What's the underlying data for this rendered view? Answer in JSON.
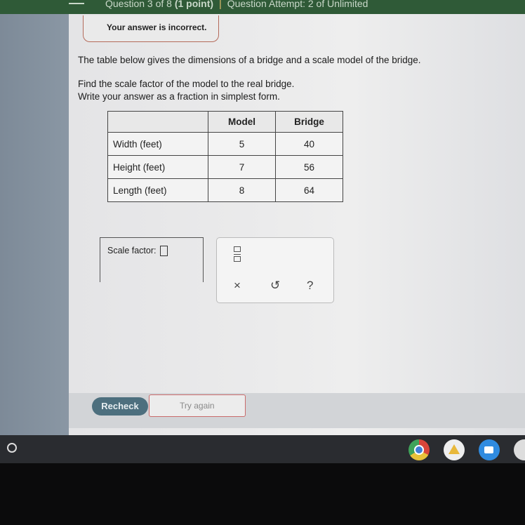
{
  "header": {
    "question": "Question 3 of 8",
    "points": "(1 point)",
    "separator": "|",
    "attempt": "Question Attempt: 2 of Unlimited"
  },
  "feedback": "Your answer is incorrect.",
  "prompt": {
    "line1": "The table below gives the dimensions of a bridge and a scale model of the bridge.",
    "line2": "Find the scale factor of the model to the real bridge.",
    "line3": "Write your answer as a fraction in simplest form."
  },
  "table": {
    "headers": [
      "",
      "Model",
      "Bridge"
    ],
    "rows": [
      [
        "Width (feet)",
        "5",
        "40"
      ],
      [
        "Height (feet)",
        "7",
        "56"
      ],
      [
        "Length (feet)",
        "8",
        "64"
      ]
    ]
  },
  "answer": {
    "label": "Scale factor:",
    "value": ""
  },
  "keypad": {
    "fraction_icon": "fraction-icon",
    "clear": "×",
    "undo": "↺",
    "help": "?"
  },
  "buttons": {
    "recheck": "Recheck",
    "try_again": "Try again"
  },
  "shelf": {
    "apps": [
      "chrome-icon",
      "drive-icon",
      "zoom-icon",
      "camera-icon"
    ]
  }
}
